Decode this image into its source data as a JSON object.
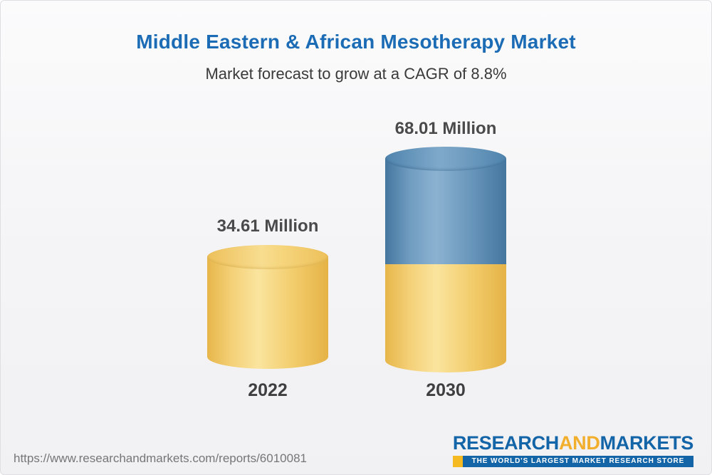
{
  "page": {
    "title": "Middle Eastern & African Mesotherapy Market",
    "subtitle": "Market forecast to grow at a CAGR of 8.8%",
    "footer_url": "https://www.researchandmarkets.com/reports/6010081"
  },
  "logo": {
    "word_research": "RESEARCH",
    "word_and": "AND",
    "word_markets": "MARKETS",
    "tagline": "THE WORLD'S LARGEST MARKET RESEARCH STORE"
  },
  "chart_data": {
    "type": "bar",
    "subtype": "3d-cylinder",
    "title": "Middle Eastern & African Mesotherapy Market",
    "subtitle": "Market forecast to grow at a CAGR of 8.8%",
    "categories": [
      "2022",
      "2030"
    ],
    "values": [
      34.61,
      68.01
    ],
    "unit": "Million",
    "value_labels": [
      "34.61 Million",
      "68.01 Million"
    ],
    "cagr": "8.8%",
    "xlabel": "",
    "ylabel": "",
    "grid": false,
    "legend": false,
    "colors": {
      "bar_2022": "#F2CC6B",
      "bar_2030_growth_segment": "#6795BA",
      "bar_2030_base_segment": "#F2CC6B",
      "title": "#1B6CB5",
      "label_text": "#4A4A4A"
    },
    "notes": "2030 cylinder is stacked: gold base equal to 2022 value with blue growth segment on top"
  }
}
